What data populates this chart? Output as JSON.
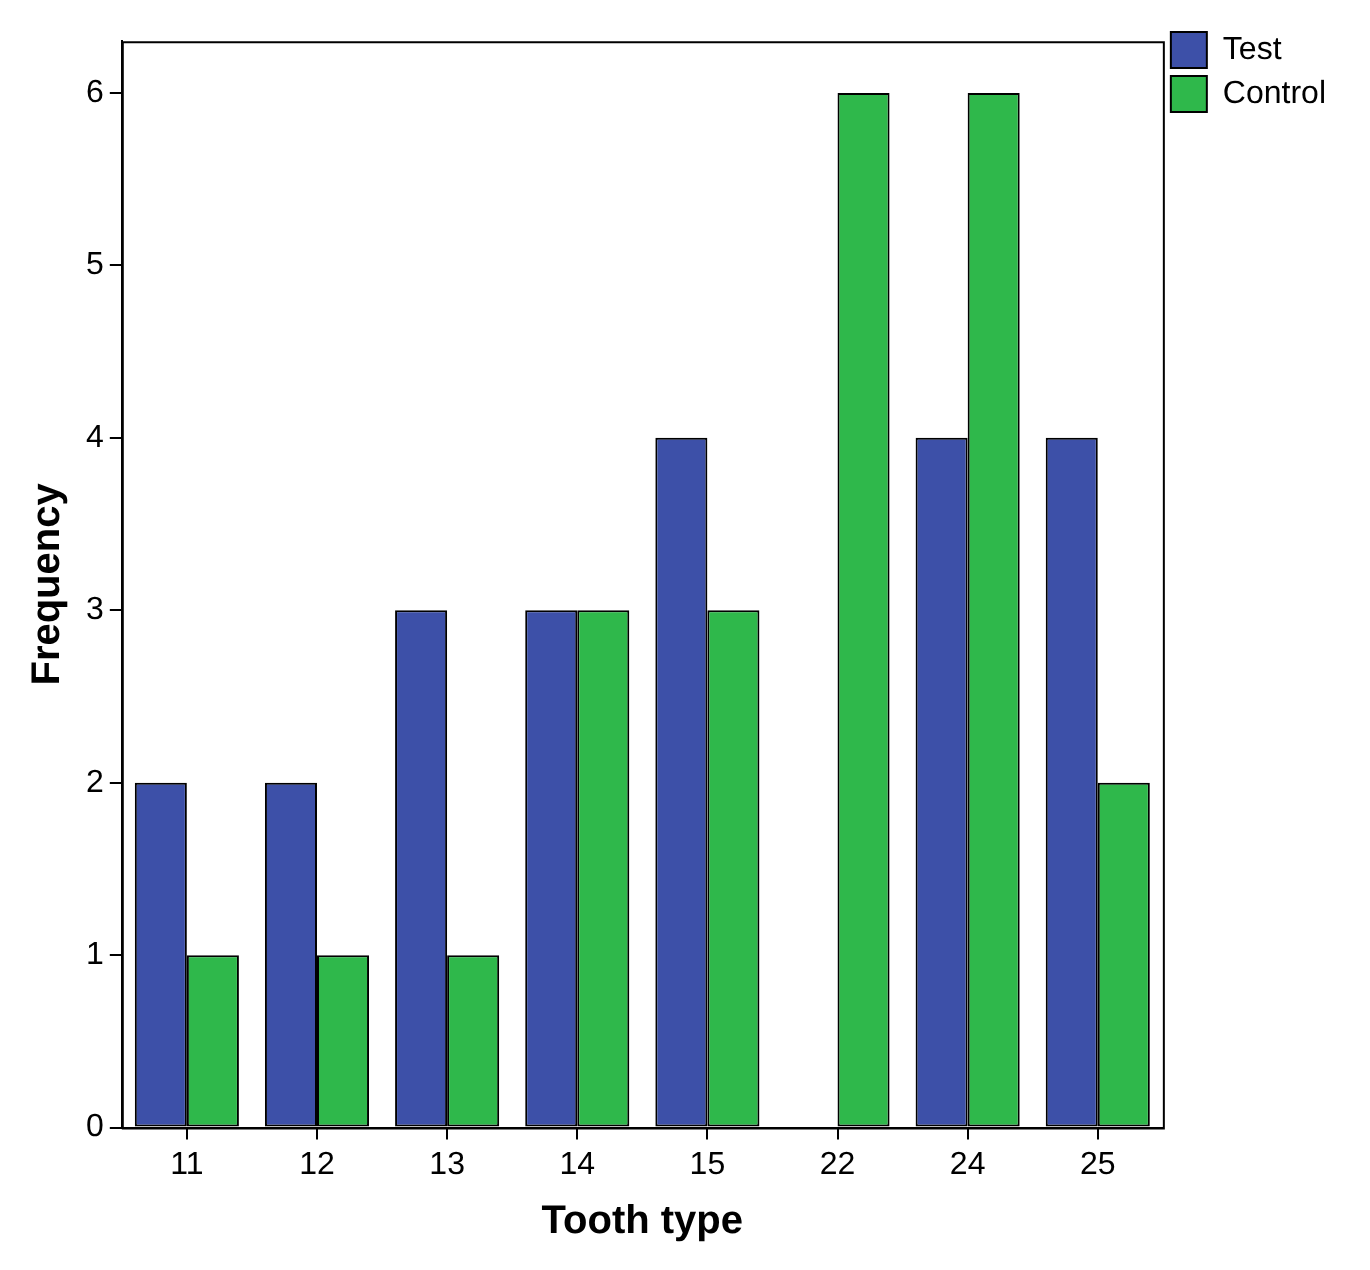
{
  "chart_data": {
    "type": "bar",
    "xlabel": "Tooth type",
    "ylabel": "Frequency",
    "categories": [
      "11",
      "12",
      "13",
      "14",
      "15",
      "22",
      "24",
      "25"
    ],
    "series": [
      {
        "name": "Test",
        "color": "#3d50a8",
        "values": [
          2,
          2,
          3,
          3,
          4,
          0,
          4,
          4
        ]
      },
      {
        "name": "Control",
        "color": "#2fb84b",
        "values": [
          1,
          1,
          1,
          3,
          3,
          6,
          6,
          2
        ]
      }
    ],
    "ylim": [
      0,
      6.3
    ],
    "yticks": [
      0,
      1,
      2,
      3,
      4,
      5,
      6
    ],
    "grid": false,
    "legend": "top right"
  }
}
